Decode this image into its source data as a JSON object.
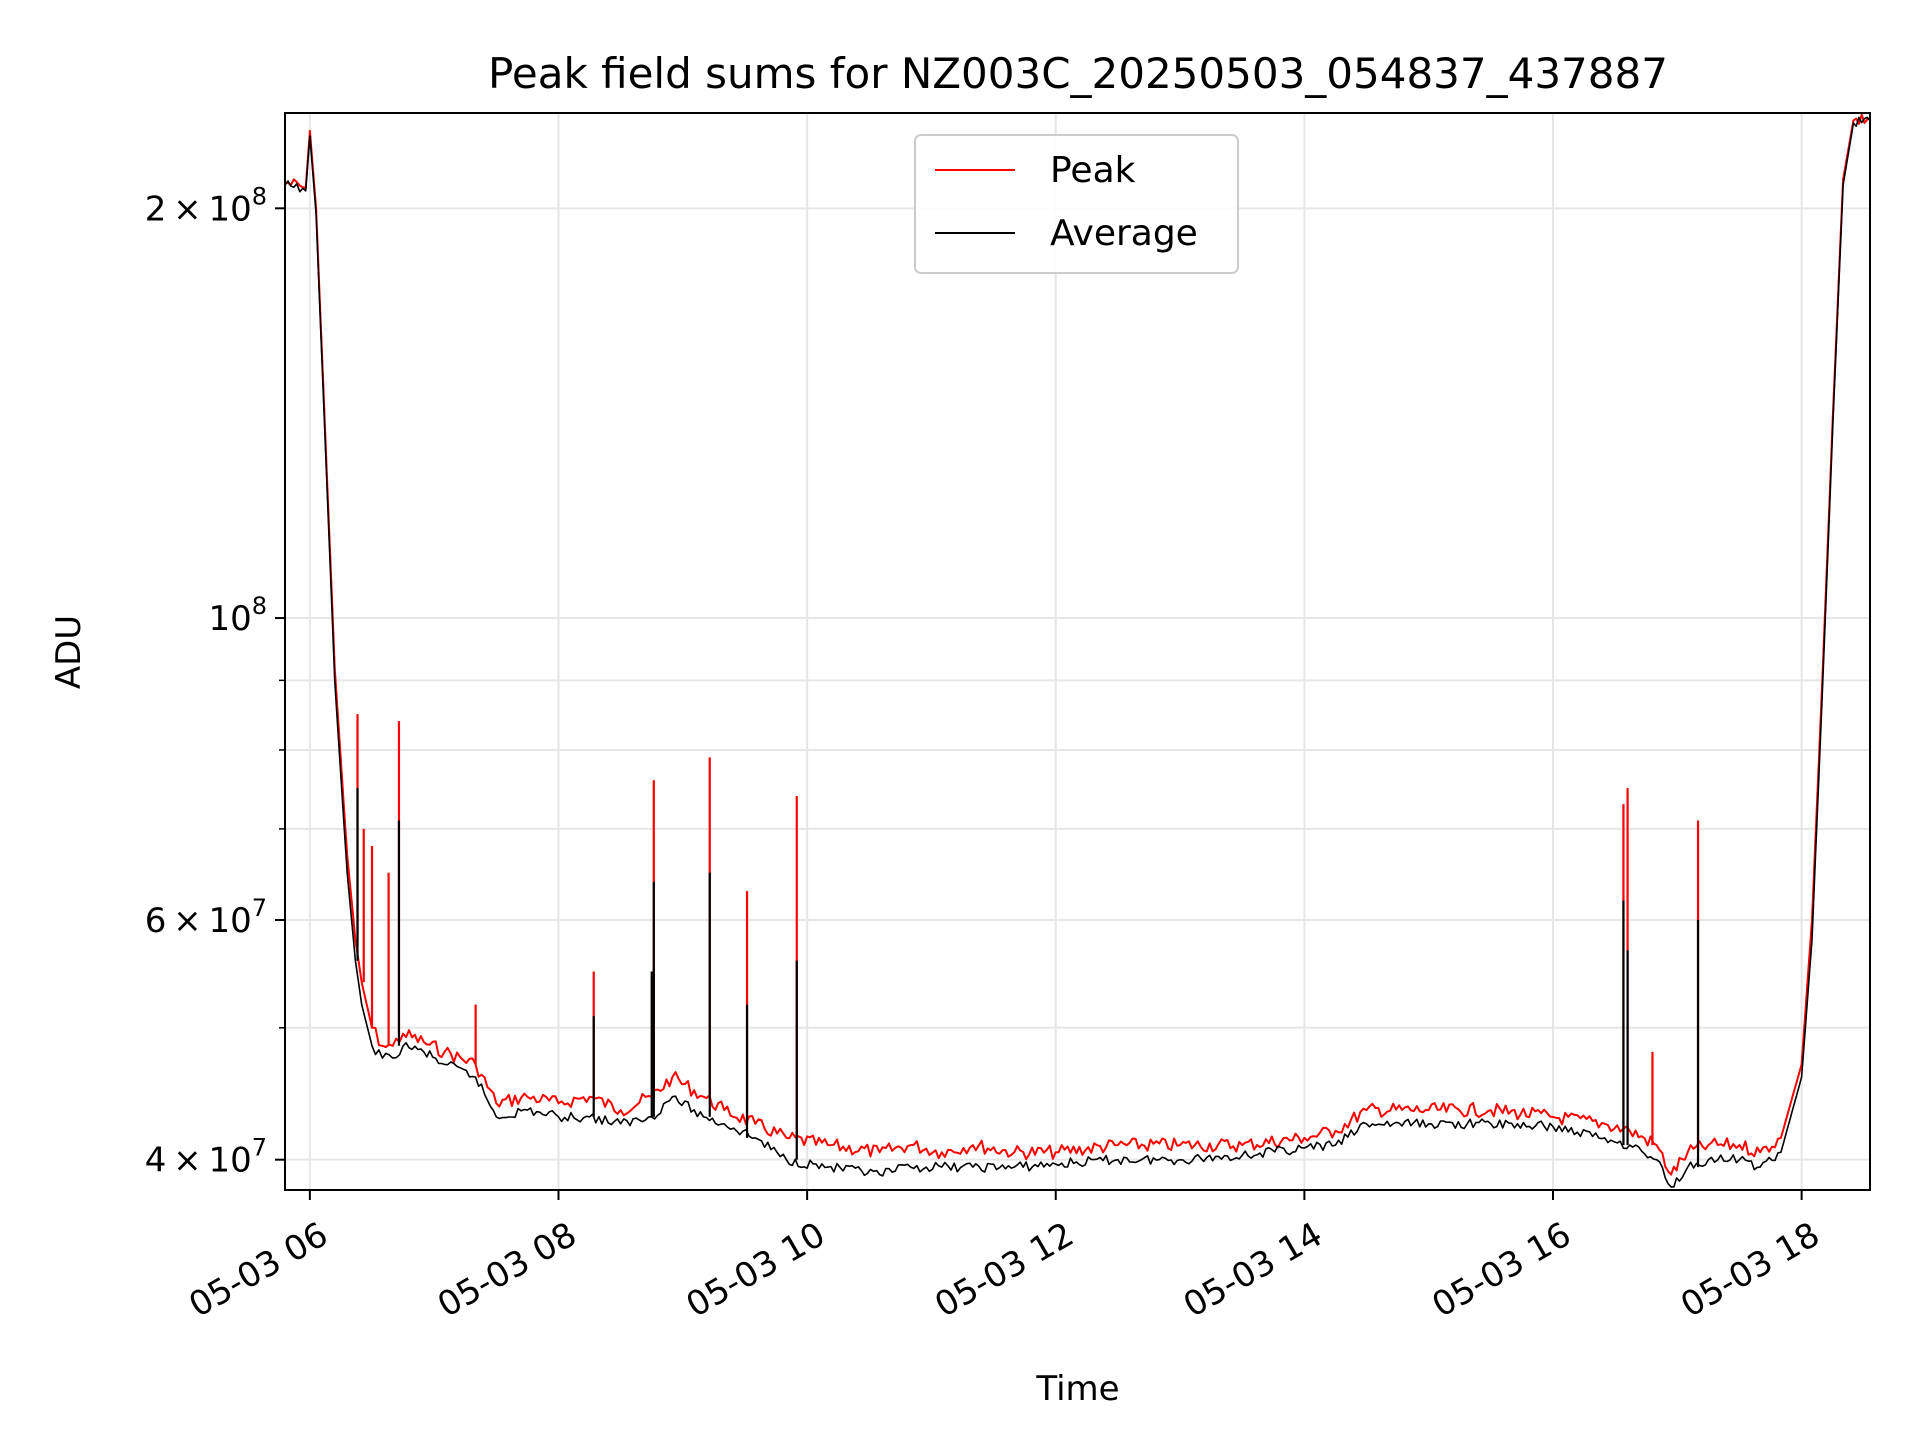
{
  "chart_data": {
    "type": "line",
    "title": "Peak field sums for NZ003C_20250503_054837_437887",
    "xlabel": "Time",
    "ylabel": "ADU",
    "y_scale": "log",
    "ylim": [
      38000000,
      235000000
    ],
    "xlim": [
      "2025-05-03 05:48",
      "2025-05-03 18:33"
    ],
    "x_ticks": [
      {
        "value": "2025-05-03 06:00",
        "label": "05-03 06"
      },
      {
        "value": "2025-05-03 08:00",
        "label": "05-03 08"
      },
      {
        "value": "2025-05-03 10:00",
        "label": "05-03 10"
      },
      {
        "value": "2025-05-03 12:00",
        "label": "05-03 12"
      },
      {
        "value": "2025-05-03 14:00",
        "label": "05-03 14"
      },
      {
        "value": "2025-05-03 16:00",
        "label": "05-03 16"
      },
      {
        "value": "2025-05-03 18:00",
        "label": "05-03 18"
      }
    ],
    "y_major_ticks": [
      {
        "value": 40000000,
        "base": "4",
        "exp": "7"
      },
      {
        "value": 60000000,
        "base": "6",
        "exp": "7"
      },
      {
        "value": 100000000,
        "base": "",
        "exp": "8"
      },
      {
        "value": 200000000,
        "base": "2",
        "exp": "8"
      }
    ],
    "y_minor_ticks": [
      50000000,
      70000000,
      80000000,
      90000000
    ],
    "grid": true,
    "legend": {
      "placement": "upper-center"
    },
    "series": [
      {
        "name": "Peak",
        "color": "#ff0000",
        "x": [
          "2025-05-03 05:48",
          "2025-05-03 05:58",
          "2025-05-03 06:00",
          "2025-05-03 06:03",
          "2025-05-03 06:08",
          "2025-05-03 06:12",
          "2025-05-03 06:18",
          "2025-05-03 06:22",
          "2025-05-03 06:25",
          "2025-05-03 06:30",
          "2025-05-03 06:35",
          "2025-05-03 06:40",
          "2025-05-03 06:45",
          "2025-05-03 06:55",
          "2025-05-03 07:05",
          "2025-05-03 07:20",
          "2025-05-03 07:30",
          "2025-05-03 07:45",
          "2025-05-03 08:00",
          "2025-05-03 08:15",
          "2025-05-03 08:30",
          "2025-05-03 08:45",
          "2025-05-03 08:55",
          "2025-05-03 09:10",
          "2025-05-03 09:20",
          "2025-05-03 09:35",
          "2025-05-03 09:50",
          "2025-05-03 10:10",
          "2025-05-03 10:35",
          "2025-05-03 10:50",
          "2025-05-03 11:05",
          "2025-05-03 11:20",
          "2025-05-03 11:40",
          "2025-05-03 12:00",
          "2025-05-03 12:30",
          "2025-05-03 13:00",
          "2025-05-03 13:30",
          "2025-05-03 14:00",
          "2025-05-03 14:15",
          "2025-05-03 14:30",
          "2025-05-03 15:00",
          "2025-05-03 15:30",
          "2025-05-03 16:00",
          "2025-05-03 16:25",
          "2025-05-03 16:37",
          "2025-05-03 16:50",
          "2025-05-03 16:57",
          "2025-05-03 17:05",
          "2025-05-03 17:15",
          "2025-05-03 17:30",
          "2025-05-03 17:40",
          "2025-05-03 17:50",
          "2025-05-03 18:00",
          "2025-05-03 18:05",
          "2025-05-03 18:10",
          "2025-05-03 18:15",
          "2025-05-03 18:20",
          "2025-05-03 18:25",
          "2025-05-03 18:33"
        ],
        "y": [
          209000000,
          207000000,
          228000000,
          200000000,
          130000000,
          92000000,
          67000000,
          58000000,
          54000000,
          50000000,
          48500000,
          48500000,
          49500000,
          48800000,
          48000000,
          47000000,
          44000000,
          44500000,
          44000000,
          44500000,
          43500000,
          44500000,
          46000000,
          44500000,
          43500000,
          42500000,
          41500000,
          41000000,
          40500000,
          41000000,
          40500000,
          41000000,
          40500000,
          40500000,
          41000000,
          41000000,
          41000000,
          41500000,
          42000000,
          43500000,
          43500000,
          43500000,
          43000000,
          42500000,
          42000000,
          41000000,
          39000000,
          40500000,
          41000000,
          41000000,
          40500000,
          41500000,
          47000000,
          60000000,
          90000000,
          140000000,
          210000000,
          232000000,
          233000000
        ],
        "spikes": [
          {
            "x": "2025-05-03 06:23",
            "y": 85000000
          },
          {
            "x": "2025-05-03 06:26",
            "y": 70000000
          },
          {
            "x": "2025-05-03 06:30",
            "y": 68000000
          },
          {
            "x": "2025-05-03 06:38",
            "y": 65000000
          },
          {
            "x": "2025-05-03 06:43",
            "y": 84000000
          },
          {
            "x": "2025-05-03 07:20",
            "y": 52000000
          },
          {
            "x": "2025-05-03 08:17",
            "y": 55000000
          },
          {
            "x": "2025-05-03 08:46",
            "y": 76000000
          },
          {
            "x": "2025-05-03 09:13",
            "y": 79000000
          },
          {
            "x": "2025-05-03 09:31",
            "y": 63000000
          },
          {
            "x": "2025-05-03 09:55",
            "y": 74000000
          },
          {
            "x": "2025-05-03 16:34",
            "y": 73000000
          },
          {
            "x": "2025-05-03 16:36",
            "y": 75000000
          },
          {
            "x": "2025-05-03 16:48",
            "y": 48000000
          },
          {
            "x": "2025-05-03 17:10",
            "y": 71000000
          }
        ]
      },
      {
        "name": "Average",
        "color": "#000000",
        "x": [
          "2025-05-03 05:48",
          "2025-05-03 05:58",
          "2025-05-03 06:00",
          "2025-05-03 06:03",
          "2025-05-03 06:08",
          "2025-05-03 06:12",
          "2025-05-03 06:18",
          "2025-05-03 06:22",
          "2025-05-03 06:25",
          "2025-05-03 06:30",
          "2025-05-03 06:35",
          "2025-05-03 06:40",
          "2025-05-03 06:45",
          "2025-05-03 06:55",
          "2025-05-03 07:05",
          "2025-05-03 07:20",
          "2025-05-03 07:30",
          "2025-05-03 07:45",
          "2025-05-03 08:00",
          "2025-05-03 08:15",
          "2025-05-03 08:30",
          "2025-05-03 08:45",
          "2025-05-03 08:55",
          "2025-05-03 09:10",
          "2025-05-03 09:20",
          "2025-05-03 09:35",
          "2025-05-03 09:50",
          "2025-05-03 10:10",
          "2025-05-03 10:35",
          "2025-05-03 10:50",
          "2025-05-03 11:05",
          "2025-05-03 11:20",
          "2025-05-03 11:40",
          "2025-05-03 12:00",
          "2025-05-03 12:30",
          "2025-05-03 13:00",
          "2025-05-03 13:30",
          "2025-05-03 14:00",
          "2025-05-03 14:15",
          "2025-05-03 14:30",
          "2025-05-03 15:00",
          "2025-05-03 15:30",
          "2025-05-03 16:00",
          "2025-05-03 16:25",
          "2025-05-03 16:37",
          "2025-05-03 16:50",
          "2025-05-03 16:57",
          "2025-05-03 17:05",
          "2025-05-03 17:15",
          "2025-05-03 17:30",
          "2025-05-03 17:40",
          "2025-05-03 17:50",
          "2025-05-03 18:00",
          "2025-05-03 18:05",
          "2025-05-03 18:10",
          "2025-05-03 18:15",
          "2025-05-03 18:20",
          "2025-05-03 18:25",
          "2025-05-03 18:33"
        ],
        "y": [
          208000000,
          206000000,
          226000000,
          198000000,
          128000000,
          90000000,
          65000000,
          56000000,
          52000000,
          48500000,
          47500000,
          47500000,
          48500000,
          48000000,
          47000000,
          46000000,
          43000000,
          43500000,
          43000000,
          43000000,
          42500000,
          43000000,
          44500000,
          43000000,
          42500000,
          41500000,
          40000000,
          39500000,
          39000000,
          39500000,
          39500000,
          39500000,
          39500000,
          39700000,
          40000000,
          40000000,
          40300000,
          40800000,
          41000000,
          42500000,
          42500000,
          42500000,
          42300000,
          41500000,
          41000000,
          40000000,
          38200000,
          39500000,
          40000000,
          40000000,
          39500000,
          40500000,
          46000000,
          58000000,
          88000000,
          138000000,
          208000000,
          231000000,
          232000000
        ],
        "spikes": [
          {
            "x": "2025-05-03 06:23",
            "y": 75000000
          },
          {
            "x": "2025-05-03 06:43",
            "y": 71000000
          },
          {
            "x": "2025-05-03 08:17",
            "y": 51000000
          },
          {
            "x": "2025-05-03 08:45",
            "y": 55000000
          },
          {
            "x": "2025-05-03 08:46",
            "y": 64000000
          },
          {
            "x": "2025-05-03 09:13",
            "y": 65000000
          },
          {
            "x": "2025-05-03 09:31",
            "y": 52000000
          },
          {
            "x": "2025-05-03 09:55",
            "y": 56000000
          },
          {
            "x": "2025-05-03 16:34",
            "y": 62000000
          },
          {
            "x": "2025-05-03 16:36",
            "y": 57000000
          },
          {
            "x": "2025-05-03 17:10",
            "y": 60000000
          }
        ]
      }
    ]
  }
}
